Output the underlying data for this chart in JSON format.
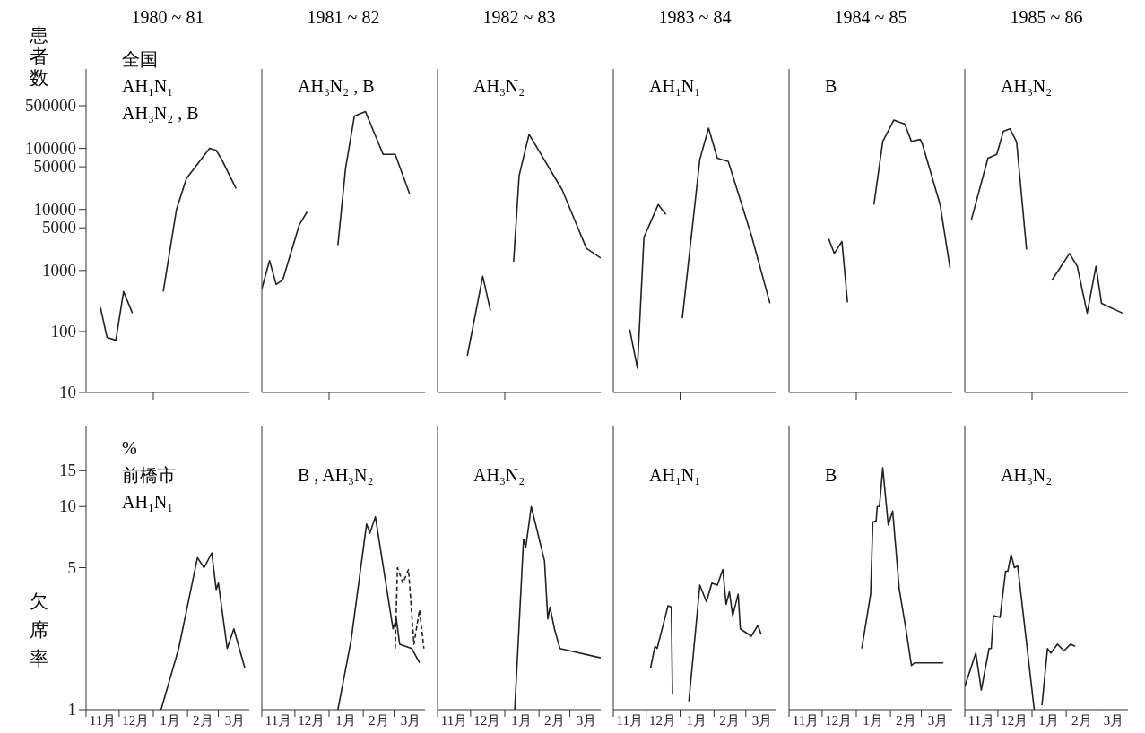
{
  "chart_data": [
    {
      "type": "line",
      "title": "1980 ~ 81",
      "ylabel": "患者数",
      "annotations": [
        "全国",
        "AH₁N₁",
        "AH₃N₂ , B"
      ],
      "log": true,
      "tick_labels": "y",
      "xlim": [
        "1980-11-01",
        "1981-03-29"
      ],
      "xticks": [
        {
          "value": "1981-01-01",
          "label": null
        }
      ],
      "ylim": [
        10,
        2000000
      ],
      "yticks": [
        10,
        100,
        1000,
        5000,
        10000,
        50000,
        100000,
        500000
      ],
      "series": [
        {
          "color": "#222222",
          "x": [
            "1980-11-14",
            "1980-11-20",
            "1980-11-28",
            "1980-12-05",
            "1980-12-13",
            "1980-12-27",
            "1981-01-10",
            "1981-01-22",
            "1981-01-31",
            "1981-02-21",
            "1981-02-27",
            "1981-03-04",
            "1981-03-17"
          ],
          "values": [
            250,
            80,
            72,
            450,
            200,
            null,
            450,
            10000,
            32000,
            100000,
            93000,
            66000,
            22000
          ]
        }
      ]
    },
    {
      "type": "line",
      "title": "1981 ~ 82",
      "annotations": [
        "AH₃N₂ , B"
      ],
      "log": true,
      "tick_labels": false,
      "xlim": [
        "1981-11-01",
        "1982-03-29"
      ],
      "xticks": [
        {
          "value": "1982-01-01",
          "label": null
        }
      ],
      "ylim": [
        10,
        2000000
      ],
      "yticks": [
        10,
        100,
        1000,
        5000,
        10000,
        50000,
        100000,
        500000
      ],
      "series": [
        {
          "color": "#222222",
          "x": [
            "1981-11-01",
            "1981-11-08",
            "1981-11-14",
            "1981-11-20",
            "1981-12-05",
            "1981-12-12",
            "1981-12-25",
            "1982-01-09",
            "1982-01-16",
            "1982-01-24",
            "1982-02-03",
            "1982-02-19",
            "1982-03-02",
            "1982-03-15"
          ],
          "values": [
            500,
            1450,
            590,
            700,
            5600,
            9100,
            null,
            2600,
            48000,
            340000,
            400000,
            80000,
            80000,
            18000
          ]
        }
      ]
    },
    {
      "type": "line",
      "title": "1982 ~ 83",
      "annotations": [
        "AH₃N₂"
      ],
      "log": true,
      "tick_labels": false,
      "xlim": [
        "1982-11-01",
        "1983-03-29"
      ],
      "xticks": [
        {
          "value": "1983-01-01",
          "label": null
        }
      ],
      "ylim": [
        10,
        2000000
      ],
      "yticks": [
        10,
        100,
        1000,
        5000,
        10000,
        50000,
        100000,
        500000
      ],
      "series": [
        {
          "color": "#222222",
          "x": [
            "1982-11-28",
            "1982-12-12",
            "1982-12-19",
            "1982-12-28",
            "1983-01-09",
            "1983-01-14",
            "1983-01-23",
            "1983-02-22",
            "1983-03-16",
            "1983-03-29"
          ],
          "values": [
            40,
            800,
            220,
            null,
            1400,
            36000,
            170000,
            21000,
            2300,
            1600
          ]
        }
      ]
    },
    {
      "type": "line",
      "title": "1983 ~ 84",
      "annotations": [
        "AH₁N₁"
      ],
      "log": true,
      "tick_labels": false,
      "xlim": [
        "1983-11-01",
        "1984-03-29"
      ],
      "xticks": [
        {
          "value": "1984-01-01",
          "label": null
        }
      ],
      "ylim": [
        10,
        2000000
      ],
      "yticks": [
        10,
        100,
        1000,
        5000,
        10000,
        50000,
        100000,
        500000
      ],
      "series": [
        {
          "color": "#222222",
          "x": [
            "1983-11-16",
            "1983-11-23",
            "1983-11-29",
            "1983-12-12",
            "1983-12-19",
            "1983-12-27",
            "1984-01-03",
            "1984-01-19",
            "1984-01-27",
            "1984-02-04",
            "1984-02-14",
            "1984-03-06",
            "1984-03-23"
          ],
          "values": [
            108,
            25,
            3500,
            12000,
            8300,
            null,
            165,
            66000,
            215000,
            69000,
            61000,
            3800,
            290
          ]
        }
      ]
    },
    {
      "type": "line",
      "title": "1984 ~ 85",
      "annotations": [
        "B"
      ],
      "log": true,
      "tick_labels": false,
      "xlim": [
        "1984-11-01",
        "1985-03-29"
      ],
      "xticks": [
        {
          "value": "1985-01-01",
          "label": null
        }
      ],
      "ylim": [
        10,
        2000000
      ],
      "yticks": [
        10,
        100,
        1000,
        5000,
        10000,
        50000,
        100000,
        500000
      ],
      "series": [
        {
          "color": "#222222",
          "x": [
            "1984-12-07",
            "1984-12-12",
            "1984-12-19",
            "1984-12-24",
            "1985-01-07",
            "1985-01-17",
            "1985-01-25",
            "1985-02-04",
            "1985-02-14",
            "1985-02-20",
            "1985-02-28",
            "1985-03-02",
            "1985-03-18",
            "1985-03-27"
          ],
          "values": [
            3300,
            1900,
            3000,
            300,
            null,
            12000,
            130000,
            290000,
            250000,
            130000,
            140000,
            117000,
            12000,
            1100
          ]
        }
      ]
    },
    {
      "type": "line",
      "title": "1985 ~ 86",
      "annotations": [
        "AH₃N₂"
      ],
      "log": true,
      "tick_labels": false,
      "xlim": [
        "1985-11-01",
        "1986-03-29"
      ],
      "xticks": [
        {
          "value": "1986-01-01",
          "label": null
        }
      ],
      "ylim": [
        10,
        2000000
      ],
      "yticks": [
        10,
        100,
        1000,
        5000,
        10000,
        50000,
        100000,
        500000
      ],
      "series": [
        {
          "color": "#222222",
          "x": [
            "1985-11-07",
            "1985-11-22",
            "1985-11-30",
            "1985-12-06",
            "1985-12-12",
            "1985-12-18",
            "1985-12-27",
            "1986-01-07",
            "1986-01-19",
            "1986-02-04",
            "1986-02-11",
            "1986-02-20",
            "1986-02-28",
            "1986-03-05",
            "1986-03-24"
          ],
          "values": [
            6800,
            69000,
            80000,
            190000,
            210000,
            128000,
            2200,
            null,
            690,
            1900,
            1170,
            200,
            1170,
            290,
            200
          ]
        }
      ]
    },
    {
      "type": "line",
      "ylabel": "欠席率",
      "annotations": [
        "%",
        "前橋市",
        "AH₁N₁"
      ],
      "log": true,
      "xlim": [
        "1980-11-01",
        "1981-03-29"
      ],
      "xticks": [
        {
          "value": "1980-11-01",
          "label": null
        },
        {
          "value": "1980-11-16",
          "label": "11月"
        },
        {
          "value": "1980-12-01",
          "label": null
        },
        {
          "value": "1980-12-16",
          "label": "12月"
        },
        {
          "value": "1981-01-01",
          "label": null
        },
        {
          "value": "1981-01-16",
          "label": "1月"
        },
        {
          "value": "1981-02-01",
          "label": null
        },
        {
          "value": "1981-02-15",
          "label": "2月"
        },
        {
          "value": "1981-03-01",
          "label": null
        },
        {
          "value": "1981-03-16",
          "label": "3月"
        }
      ],
      "ylim": [
        1,
        25
      ],
      "yticks": [
        1,
        5,
        10,
        15
      ],
      "series": [
        {
          "color": "#222222",
          "x": [
            "1981-01-08",
            "1981-01-24",
            "1981-02-10",
            "1981-02-16",
            "1981-02-23",
            "1981-02-27",
            "1981-03-01",
            "1981-03-09",
            "1981-03-15",
            "1981-03-25"
          ],
          "values": [
            1.0,
            2.0,
            5.6,
            5.0,
            5.9,
            3.9,
            4.2,
            2.0,
            2.5,
            1.6
          ]
        }
      ]
    },
    {
      "type": "line",
      "annotations": [
        "B , AH₃N₂"
      ],
      "log": true,
      "tick_labels": "x",
      "xlim": [
        "1981-11-01",
        "1982-03-29"
      ],
      "xticks": [
        {
          "value": "1981-11-01",
          "label": null
        },
        {
          "value": "1981-11-16",
          "label": "11月"
        },
        {
          "value": "1981-12-01",
          "label": null
        },
        {
          "value": "1981-12-16",
          "label": "12月"
        },
        {
          "value": "1982-01-01",
          "label": null
        },
        {
          "value": "1982-01-16",
          "label": "1月"
        },
        {
          "value": "1982-02-01",
          "label": null
        },
        {
          "value": "1982-02-15",
          "label": "2月"
        },
        {
          "value": "1982-03-01",
          "label": null
        },
        {
          "value": "1982-03-16",
          "label": "3月"
        }
      ],
      "ylim": [
        1,
        25
      ],
      "yticks": [
        1,
        5,
        10,
        15
      ],
      "series": [
        {
          "color": "#222222",
          "x": [
            "1982-01-09",
            "1982-01-21",
            "1982-02-04",
            "1982-02-07",
            "1982-02-12",
            "1982-02-28",
            "1982-03-03",
            "1982-03-06",
            "1982-03-17",
            "1982-03-24"
          ],
          "values": [
            1.0,
            2.2,
            8.2,
            7.4,
            8.9,
            2.5,
            2.8,
            2.1,
            2.0,
            1.7
          ]
        },
        {
          "color": "#222222",
          "line_style": "dashed",
          "x": [
            "1982-03-02",
            "1982-03-04",
            "1982-03-09",
            "1982-03-14",
            "1982-03-19",
            "1982-03-24",
            "1982-03-28"
          ],
          "values": [
            2.0,
            5.0,
            4.2,
            4.9,
            2.1,
            3.1,
            2.0
          ]
        }
      ]
    },
    {
      "type": "line",
      "annotations": [
        "AH₃N₂"
      ],
      "log": true,
      "tick_labels": "x",
      "xlim": [
        "1982-11-01",
        "1983-03-29"
      ],
      "xticks": [
        {
          "value": "1982-11-01",
          "label": null
        },
        {
          "value": "1982-11-16",
          "label": "11月"
        },
        {
          "value": "1982-12-01",
          "label": null
        },
        {
          "value": "1982-12-16",
          "label": "12月"
        },
        {
          "value": "1983-01-01",
          "label": null
        },
        {
          "value": "1983-01-16",
          "label": "1月"
        },
        {
          "value": "1983-02-01",
          "label": null
        },
        {
          "value": "1983-02-15",
          "label": "2月"
        },
        {
          "value": "1983-03-01",
          "label": null
        },
        {
          "value": "1983-03-16",
          "label": "3月"
        }
      ],
      "ylim": [
        1,
        25
      ],
      "yticks": [
        1,
        5,
        10,
        15
      ],
      "series": [
        {
          "color": "#222222",
          "x": [
            "1983-01-10",
            "1983-01-18",
            "1983-01-20",
            "1983-01-25",
            "1983-02-06",
            "1983-02-09",
            "1983-02-11",
            "1983-02-15",
            "1983-02-20",
            "1983-03-29"
          ],
          "values": [
            1.0,
            6.9,
            6.3,
            10.0,
            5.4,
            2.8,
            3.2,
            2.5,
            2.0,
            1.8
          ]
        }
      ]
    },
    {
      "type": "line",
      "annotations": [
        "AH₁N₁"
      ],
      "log": true,
      "tick_labels": "x",
      "xlim": [
        "1983-11-01",
        "1984-03-29"
      ],
      "xticks": [
        {
          "value": "1983-11-01",
          "label": null
        },
        {
          "value": "1983-11-16",
          "label": "11月"
        },
        {
          "value": "1983-12-01",
          "label": null
        },
        {
          "value": "1983-12-16",
          "label": "12月"
        },
        {
          "value": "1984-01-01",
          "label": null
        },
        {
          "value": "1984-01-16",
          "label": "1月"
        },
        {
          "value": "1984-02-01",
          "label": null
        },
        {
          "value": "1984-02-15",
          "label": "2月"
        },
        {
          "value": "1984-03-01",
          "label": null
        },
        {
          "value": "1984-03-16",
          "label": "3月"
        }
      ],
      "ylim": [
        1,
        25
      ],
      "yticks": [
        1,
        5,
        10,
        15
      ],
      "series": [
        {
          "color": "#222222",
          "x": [
            "1983-12-05",
            "1983-12-09",
            "1983-12-11",
            "1983-12-21",
            "1983-12-24",
            "1983-12-25",
            "1983-12-30",
            "1984-01-09",
            "1984-01-19",
            "1984-01-25",
            "1984-01-30",
            "1984-02-04",
            "1984-02-09",
            "1984-02-12",
            "1984-02-15",
            "1984-02-18",
            "1984-02-23",
            "1984-02-25",
            "1984-03-06",
            "1984-03-12",
            "1984-03-15"
          ],
          "values": [
            1.6,
            2.05,
            2.0,
            3.25,
            3.2,
            1.2,
            null,
            1.1,
            4.1,
            3.4,
            4.2,
            4.1,
            4.9,
            3.3,
            3.8,
            2.9,
            3.7,
            2.5,
            2.3,
            2.6,
            2.35
          ]
        }
      ]
    },
    {
      "type": "line",
      "annotations": [
        "B"
      ],
      "log": true,
      "tick_labels": "x",
      "xlim": [
        "1984-11-01",
        "1985-03-29"
      ],
      "xticks": [
        {
          "value": "1984-11-01",
          "label": null
        },
        {
          "value": "1984-11-16",
          "label": "11月"
        },
        {
          "value": "1984-12-01",
          "label": null
        },
        {
          "value": "1984-12-16",
          "label": "12月"
        },
        {
          "value": "1985-01-01",
          "label": null
        },
        {
          "value": "1985-01-16",
          "label": "1月"
        },
        {
          "value": "1985-02-01",
          "label": null
        },
        {
          "value": "1985-02-15",
          "label": "2月"
        },
        {
          "value": "1985-03-01",
          "label": null
        },
        {
          "value": "1985-03-16",
          "label": "3月"
        }
      ],
      "ylim": [
        1,
        25
      ],
      "yticks": [
        1,
        5,
        10,
        15
      ],
      "series": [
        {
          "color": "#222222",
          "x": [
            "1985-01-06",
            "1985-01-14",
            "1985-01-16",
            "1985-01-19",
            "1985-01-20",
            "1985-01-22",
            "1985-01-25",
            "1985-01-30",
            "1985-02-03",
            "1985-02-09",
            "1985-02-15",
            "1985-02-20",
            "1985-02-23",
            "1985-03-21"
          ],
          "values": [
            2.0,
            3.7,
            8.4,
            8.5,
            10.0,
            10.0,
            15.5,
            8.1,
            9.5,
            3.9,
            2.5,
            1.65,
            1.7,
            1.7
          ]
        }
      ]
    },
    {
      "type": "line",
      "annotations": [
        "AH₃N₂"
      ],
      "log": true,
      "tick_labels": "x",
      "xlim": [
        "1985-11-01",
        "1986-03-29"
      ],
      "xticks": [
        {
          "value": "1985-11-01",
          "label": null
        },
        {
          "value": "1985-11-16",
          "label": "11月"
        },
        {
          "value": "1985-12-01",
          "label": null
        },
        {
          "value": "1985-12-16",
          "label": "12月"
        },
        {
          "value": "1986-01-01",
          "label": null
        },
        {
          "value": "1986-01-16",
          "label": "1月"
        },
        {
          "value": "1986-02-01",
          "label": null
        },
        {
          "value": "1986-02-15",
          "label": "2月"
        },
        {
          "value": "1986-03-01",
          "label": null
        },
        {
          "value": "1986-03-16",
          "label": "3月"
        }
      ],
      "ylim": [
        1,
        25
      ],
      "yticks": [
        1,
        5,
        10,
        15
      ],
      "series": [
        {
          "color": "#222222",
          "x": [
            "1985-11-01",
            "1985-11-11",
            "1985-11-16",
            "1985-11-23",
            "1985-11-25",
            "1985-11-27",
            "1985-12-03",
            "1985-12-08",
            "1985-12-10",
            "1985-12-13",
            "1985-12-16",
            "1985-12-19",
            "1986-01-03",
            "1986-01-07",
            "1986-01-10",
            "1986-01-15",
            "1986-01-18",
            "1986-01-24",
            "1986-01-30",
            "1986-02-05",
            "1986-02-09"
          ],
          "values": [
            1.3,
            1.9,
            1.25,
            2.0,
            2.0,
            2.9,
            2.85,
            4.8,
            4.8,
            5.8,
            5.0,
            5.1,
            1.0,
            null,
            1.05,
            2.0,
            1.9,
            2.1,
            1.95,
            2.1,
            2.05
          ]
        }
      ]
    }
  ]
}
